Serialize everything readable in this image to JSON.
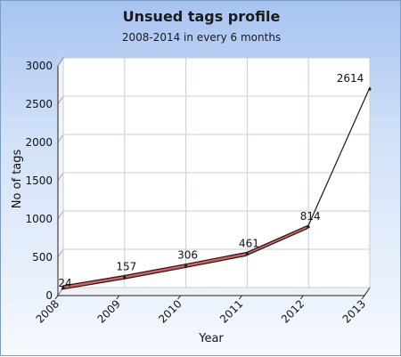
{
  "chart_data": {
    "type": "line",
    "title": "Unsued tags profile",
    "subtitle": "2008-2014 in every 6 months",
    "xlabel": "Year",
    "ylabel": "No of tags",
    "categories": [
      "2008",
      "2009",
      "2010",
      "2011",
      "2012",
      "2013"
    ],
    "values": [
      24,
      157,
      306,
      461,
      814,
      2614
    ],
    "data_labels": [
      "24",
      "157",
      "306",
      "461",
      "814",
      "2614"
    ],
    "yticks": [
      "0",
      "500",
      "1000",
      "1500",
      "2000",
      "2500",
      "3000"
    ],
    "ylim": [
      0,
      3000
    ],
    "grid": true,
    "legend": "none",
    "line_color": "#e05c5c",
    "line_edge_color": "#1a1a1a"
  }
}
